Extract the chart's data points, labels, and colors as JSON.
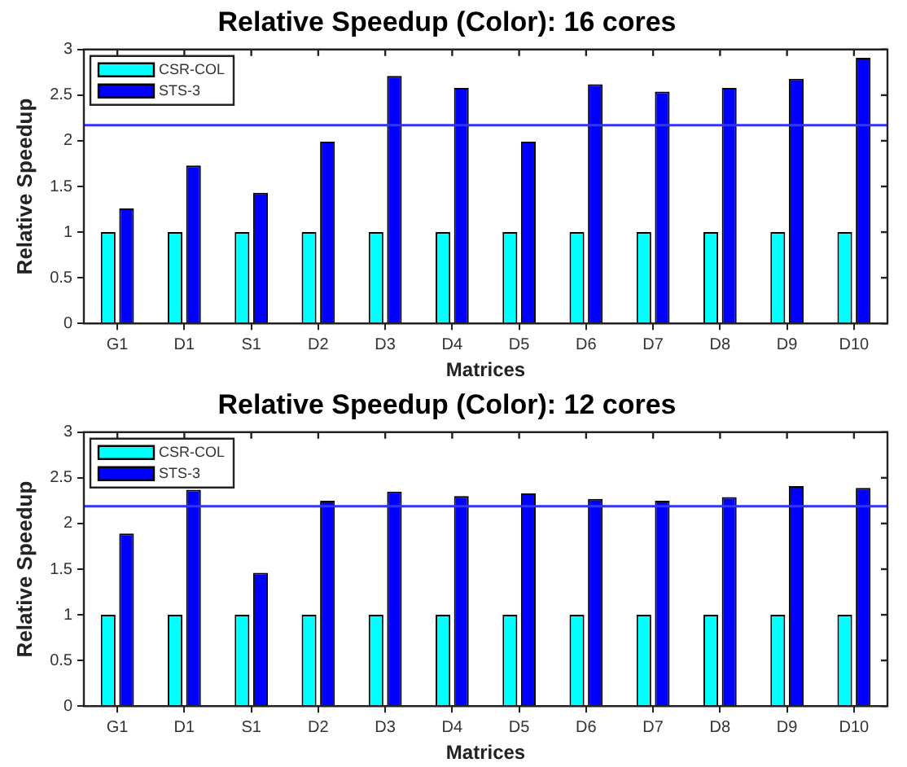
{
  "chart_data": [
    {
      "type": "bar",
      "title": "Relative Speedup (Color): 16 cores",
      "xlabel": "Matrices",
      "ylabel": "Relative Speedup",
      "categories": [
        "G1",
        "D1",
        "S1",
        "D2",
        "D3",
        "D4",
        "D5",
        "D6",
        "D7",
        "D8",
        "D9",
        "D10"
      ],
      "series": [
        {
          "name": "CSR-COL",
          "color": "#00ffff",
          "values": [
            1,
            1,
            1,
            1,
            1,
            1,
            1,
            1,
            1,
            1,
            1,
            1
          ]
        },
        {
          "name": "STS-3",
          "color": "#0000ff",
          "values": [
            1.26,
            1.73,
            1.43,
            1.99,
            2.71,
            2.58,
            1.99,
            2.62,
            2.54,
            2.58,
            2.68,
            2.91
          ]
        }
      ],
      "ylim": [
        0,
        3
      ],
      "yticks": [
        0,
        0.5,
        1,
        1.5,
        2,
        2.5,
        3
      ],
      "ref_lines": [
        {
          "axis": "y",
          "value": 2.17,
          "color": "#3333ff"
        }
      ],
      "grid": false,
      "legend": "top left"
    },
    {
      "type": "bar",
      "title": "Relative Speedup (Color): 12 cores",
      "xlabel": "Matrices",
      "ylabel": "Relative Speedup",
      "categories": [
        "G1",
        "D1",
        "S1",
        "D2",
        "D3",
        "D4",
        "D5",
        "D6",
        "D7",
        "D8",
        "D9",
        "D10"
      ],
      "series": [
        {
          "name": "CSR-COL",
          "color": "#00ffff",
          "values": [
            1,
            1,
            1,
            1,
            1,
            1,
            1,
            1,
            1,
            1,
            1,
            1
          ]
        },
        {
          "name": "STS-3",
          "color": "#0000ff",
          "values": [
            1.89,
            2.37,
            1.46,
            2.25,
            2.35,
            2.3,
            2.33,
            2.27,
            2.25,
            2.29,
            2.41,
            2.39
          ]
        }
      ],
      "ylim": [
        0,
        3
      ],
      "yticks": [
        0,
        0.5,
        1,
        1.5,
        2,
        2.5,
        3
      ],
      "ref_lines": [
        {
          "axis": "y",
          "value": 2.19,
          "color": "#3333ff"
        }
      ],
      "grid": false,
      "legend": "top left"
    }
  ]
}
